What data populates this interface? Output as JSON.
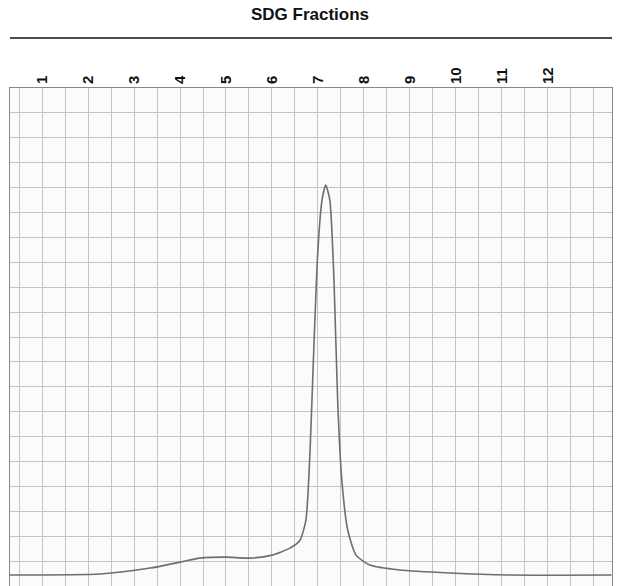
{
  "chart_data": {
    "type": "line",
    "title": "SDG Fractions",
    "x": [
      0.3,
      2.26,
      3.35,
      4.0,
      4.43,
      5.0,
      5.52,
      6.0,
      6.39,
      6.61,
      6.74,
      6.83,
      6.91,
      7.0,
      7.09,
      7.17,
      7.26,
      7.35,
      7.43,
      7.52,
      7.65,
      7.83,
      8.13,
      8.78,
      9.87,
      11.17,
      13.39
    ],
    "values": [
      2.2,
      2.4,
      3.6,
      4.8,
      5.6,
      5.8,
      5.6,
      6.2,
      7.6,
      9.2,
      13.3,
      27.3,
      47.4,
      67.5,
      77.5,
      80.5,
      77.5,
      61.4,
      37.3,
      21.3,
      11.2,
      6.2,
      4.2,
      3.2,
      2.6,
      2.2,
      2.2
    ],
    "color": "#6e6e6e",
    "xlim": [
      0.3,
      13.4
    ],
    "xticks": [
      1,
      2,
      3,
      4,
      5,
      6,
      7,
      8,
      9,
      10,
      11,
      12
    ],
    "ylim": [
      0,
      100
    ],
    "yticks": [
      0,
      5,
      10,
      15,
      20,
      25,
      30,
      35,
      40,
      45,
      50,
      55,
      60,
      65,
      70,
      75,
      80,
      85,
      90,
      95,
      100
    ],
    "grid": true,
    "tick_labels": "x"
  }
}
